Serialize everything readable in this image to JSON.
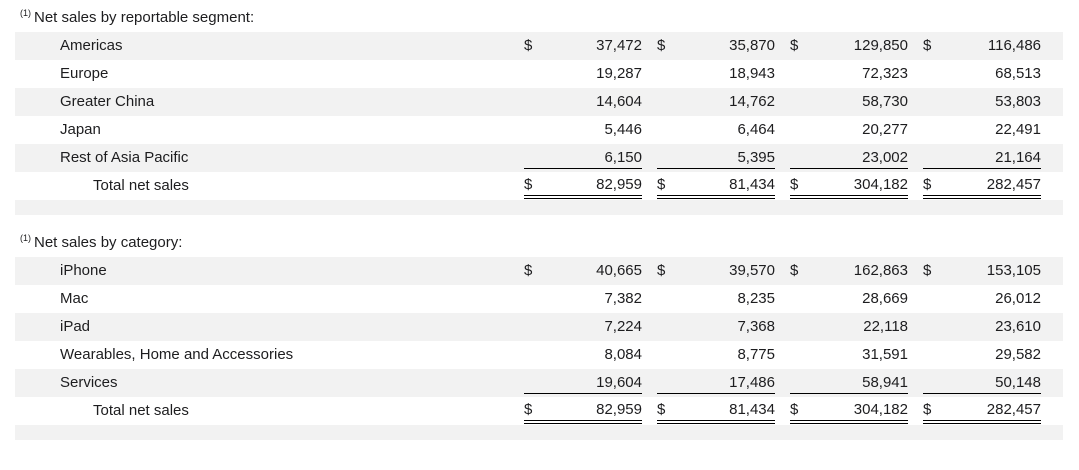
{
  "page": {
    "background_color": "#ffffff",
    "text_color": "#1d1d1f",
    "row_alt_color": "#f2f2f2"
  },
  "tables": [
    {
      "footnote_marker": "(1)",
      "title": "Net sales by reportable segment:",
      "rows": [
        {
          "label": "Americas",
          "currency": "$",
          "values": [
            "37,472",
            "35,870",
            "129,850",
            "116,486"
          ]
        },
        {
          "label": "Europe",
          "currency": "",
          "values": [
            "19,287",
            "18,943",
            "72,323",
            "68,513"
          ]
        },
        {
          "label": "Greater China",
          "currency": "",
          "values": [
            "14,604",
            "14,762",
            "58,730",
            "53,803"
          ]
        },
        {
          "label": "Japan",
          "currency": "",
          "values": [
            "5,446",
            "6,464",
            "20,277",
            "22,491"
          ]
        },
        {
          "label": "Rest of Asia Pacific",
          "currency": "",
          "values": [
            "6,150",
            "5,395",
            "23,002",
            "21,164"
          ]
        },
        {
          "label": "Total net sales",
          "currency": "$",
          "values": [
            "82,959",
            "81,434",
            "304,182",
            "282,457"
          ],
          "is_total": true
        }
      ]
    },
    {
      "footnote_marker": "(1)",
      "title": "Net sales by category:",
      "rows": [
        {
          "label": "iPhone",
          "currency": "$",
          "values": [
            "40,665",
            "39,570",
            "162,863",
            "153,105"
          ]
        },
        {
          "label": "Mac",
          "currency": "",
          "values": [
            "7,382",
            "8,235",
            "28,669",
            "26,012"
          ]
        },
        {
          "label": "iPad",
          "currency": "",
          "values": [
            "7,224",
            "7,368",
            "22,118",
            "23,610"
          ]
        },
        {
          "label": "Wearables, Home and Accessories",
          "currency": "",
          "values": [
            "8,084",
            "8,775",
            "31,591",
            "29,582"
          ]
        },
        {
          "label": "Services",
          "currency": "",
          "values": [
            "19,604",
            "17,486",
            "58,941",
            "50,148"
          ]
        },
        {
          "label": "Total net sales",
          "currency": "$",
          "values": [
            "82,959",
            "81,434",
            "304,182",
            "282,457"
          ],
          "is_total": true
        }
      ]
    }
  ]
}
